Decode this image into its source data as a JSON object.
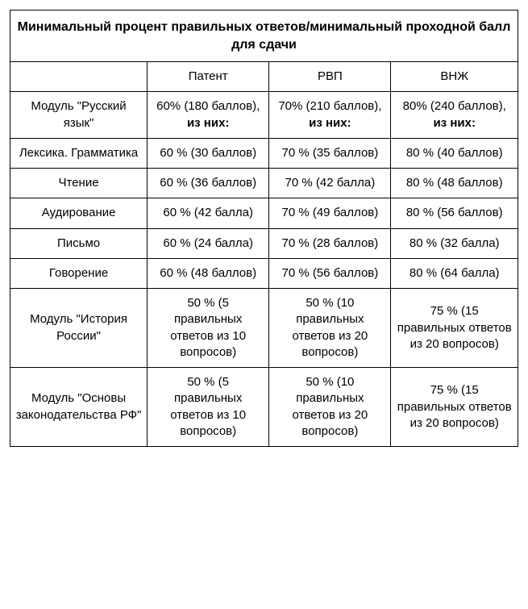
{
  "title": "Минимальный процент правильных ответов/минимальный проходной балл для сдачи",
  "header": {
    "col0": "",
    "col1": "Патент",
    "col2": "РВП",
    "col3": "ВНЖ"
  },
  "rows": [
    {
      "label": "Модуль \"Русский язык\"",
      "cells": [
        {
          "parts": [
            {
              "t": "60% (180 баллов), "
            },
            {
              "t": "из них:",
              "bold": true
            }
          ]
        },
        {
          "parts": [
            {
              "t": "70% (210 баллов), "
            },
            {
              "t": "из них:",
              "bold": true
            }
          ]
        },
        {
          "parts": [
            {
              "t": "80% (240 баллов), "
            },
            {
              "t": "из них:",
              "bold": true
            }
          ]
        }
      ]
    },
    {
      "label": "Лексика. Грамматика",
      "cells": [
        {
          "parts": [
            {
              "t": "60 % (30 баллов)"
            }
          ]
        },
        {
          "parts": [
            {
              "t": "70 % (35 баллов)"
            }
          ]
        },
        {
          "parts": [
            {
              "t": "80 % (40 баллов)"
            }
          ]
        }
      ]
    },
    {
      "label": "Чтение",
      "cells": [
        {
          "parts": [
            {
              "t": "60 % (36 баллов)"
            }
          ]
        },
        {
          "parts": [
            {
              "t": "70 % (42 балла)"
            }
          ]
        },
        {
          "parts": [
            {
              "t": "80 % (48 баллов)"
            }
          ]
        }
      ]
    },
    {
      "label": "Аудирование",
      "cells": [
        {
          "parts": [
            {
              "t": "60 % (42 балла)"
            }
          ]
        },
        {
          "parts": [
            {
              "t": "70 % (49 баллов)"
            }
          ]
        },
        {
          "parts": [
            {
              "t": "80 % (56 баллов)"
            }
          ]
        }
      ]
    },
    {
      "label": "Письмо",
      "cells": [
        {
          "parts": [
            {
              "t": "60 % (24 балла)"
            }
          ]
        },
        {
          "parts": [
            {
              "t": "70 % (28 баллов)"
            }
          ]
        },
        {
          "parts": [
            {
              "t": "80 % (32 балла)"
            }
          ]
        }
      ]
    },
    {
      "label": "Говорение",
      "cells": [
        {
          "parts": [
            {
              "t": "60 % (48 баллов)"
            }
          ]
        },
        {
          "parts": [
            {
              "t": "70 % (56 баллов)"
            }
          ]
        },
        {
          "parts": [
            {
              "t": "80 % (64 балла)"
            }
          ]
        }
      ]
    },
    {
      "label": "Модуль \"История России\"",
      "cells": [
        {
          "parts": [
            {
              "t": "50 % (5 правильных ответов из 10 вопросов)"
            }
          ]
        },
        {
          "parts": [
            {
              "t": "50 % (10 правильных ответов из 20 вопросов)"
            }
          ]
        },
        {
          "parts": [
            {
              "t": "75 % (15 правильных ответов из 20 вопросов)"
            }
          ]
        }
      ]
    },
    {
      "label": "Модуль \"Основы законодательства РФ\"",
      "cells": [
        {
          "parts": [
            {
              "t": "50 % (5 правильных ответов из 10 вопросов)"
            }
          ]
        },
        {
          "parts": [
            {
              "t": "50 % (10 правильных ответов из 20 вопросов)"
            }
          ]
        },
        {
          "parts": [
            {
              "t": "75 % (15 правильных ответов из 20 вопросов)"
            }
          ]
        }
      ]
    }
  ]
}
